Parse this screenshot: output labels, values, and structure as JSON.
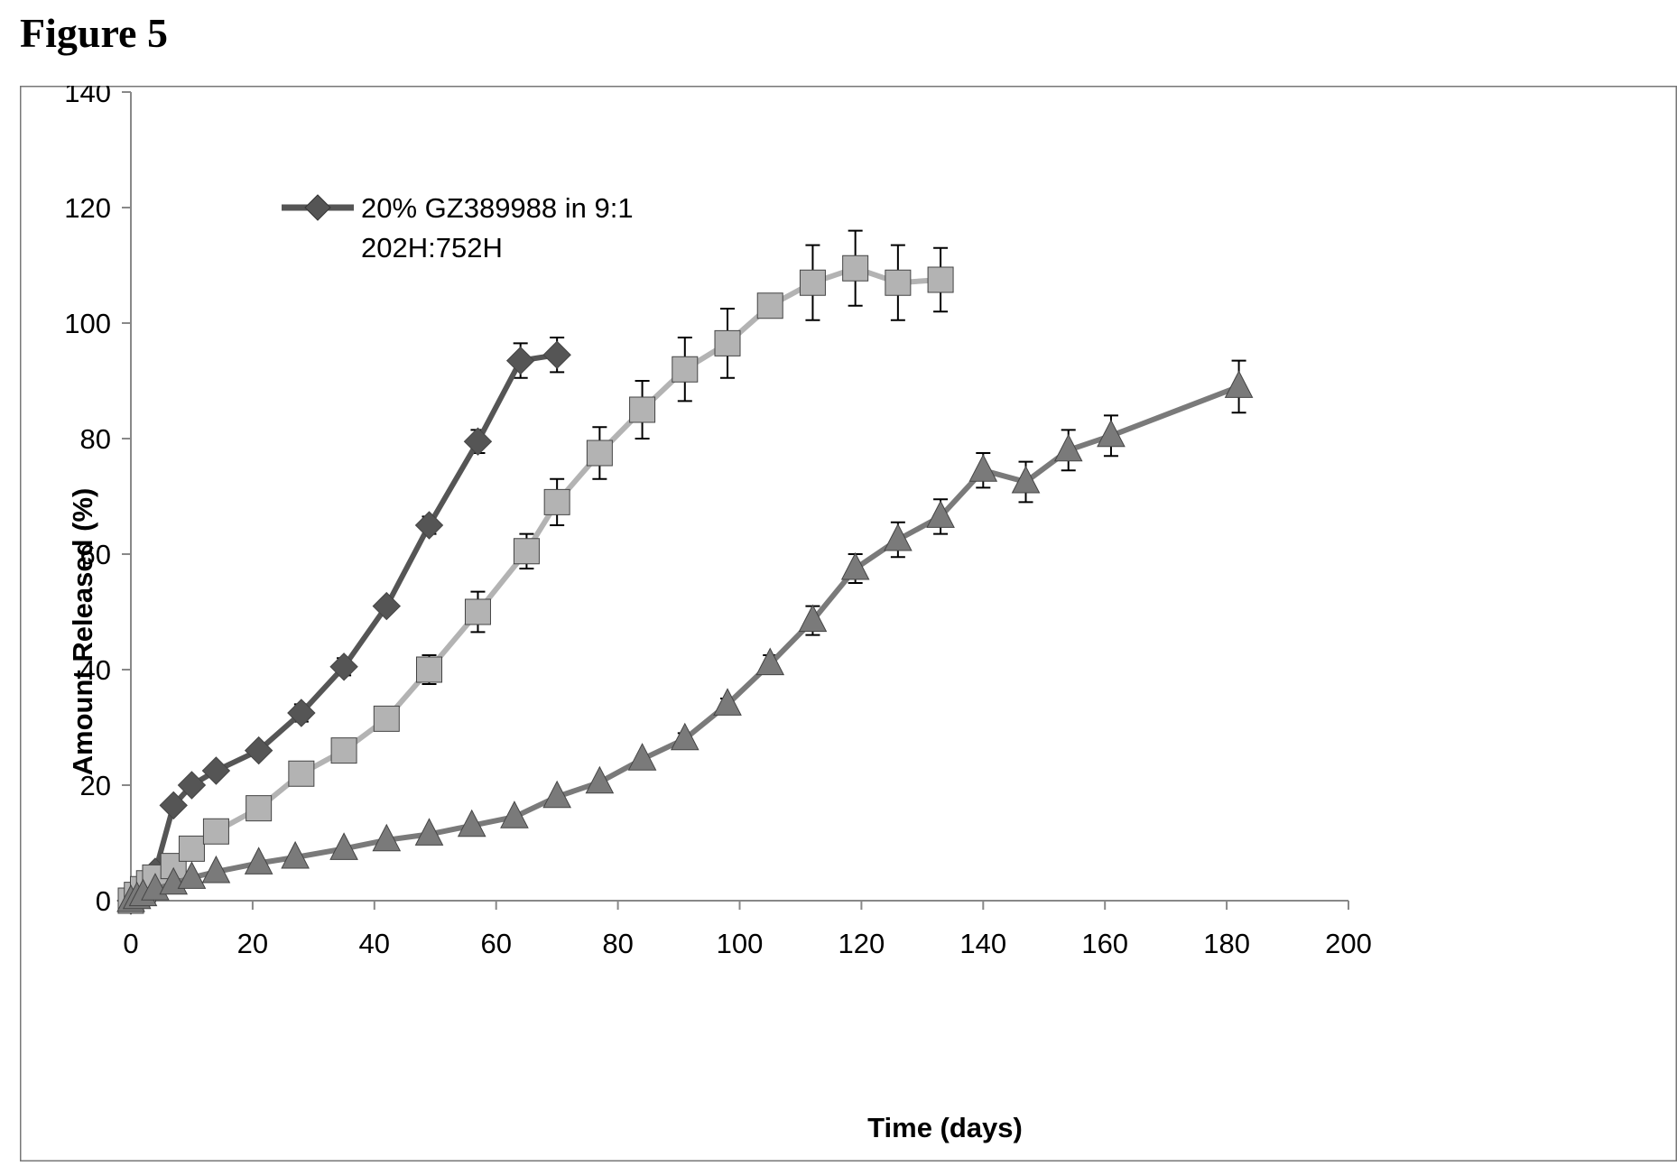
{
  "figure_title": "Figure 5",
  "chart_data": {
    "type": "line",
    "xlabel": "Time (days)",
    "ylabel": "Amount Released (%)",
    "xlim": [
      0,
      200
    ],
    "ylim": [
      0,
      140
    ],
    "xticks": [
      0,
      20,
      40,
      60,
      80,
      100,
      120,
      140,
      160,
      180,
      200
    ],
    "yticks": [
      0,
      20,
      40,
      60,
      80,
      100,
      120,
      140
    ],
    "grid": false,
    "legend_position": "upper-left",
    "legend_entries": [
      "20% GZ389988 in 9:1",
      "202H:752H"
    ],
    "series": [
      {
        "name": "20% GZ389988 in 9:1 202H:752H",
        "marker": "diamond",
        "color": "#555555",
        "x": [
          0,
          1,
          2,
          3,
          4,
          7,
          10,
          14,
          21,
          28,
          35,
          42,
          49,
          57,
          64,
          70
        ],
        "y": [
          0,
          1.5,
          2.5,
          3.5,
          5,
          16.5,
          20,
          22.5,
          26,
          32.5,
          40.5,
          51,
          65,
          79.5,
          93.5,
          94.5
        ],
        "err": [
          0,
          0,
          0,
          0,
          0,
          1,
          1,
          1,
          1,
          1.5,
          1.5,
          1,
          1.5,
          2,
          3,
          3
        ]
      },
      {
        "name": "",
        "marker": "square",
        "color": "#b3b3b3",
        "x": [
          0,
          1,
          2,
          3,
          4,
          7,
          10,
          14,
          21,
          28,
          35,
          42,
          49,
          57,
          65,
          70,
          77,
          84,
          91,
          98,
          105,
          112,
          119,
          126,
          133
        ],
        "y": [
          0,
          1,
          2,
          3,
          4,
          6,
          9,
          12,
          16,
          22,
          26,
          31.5,
          40,
          50,
          60.5,
          69,
          77.5,
          85,
          92,
          96.5,
          103,
          107,
          109.5,
          107,
          107.5
        ],
        "err": [
          0,
          0,
          0,
          0,
          0,
          0,
          0,
          0,
          0,
          0,
          0,
          2,
          2.5,
          3.5,
          3,
          4,
          4.5,
          5,
          5.5,
          6,
          1,
          6.5,
          6.5,
          6.5,
          5.5
        ]
      },
      {
        "name": "",
        "marker": "triangle",
        "color": "#7a7a7a",
        "x": [
          0,
          1,
          2,
          4,
          7,
          10,
          14,
          21,
          27,
          35,
          42,
          49,
          56,
          63,
          70,
          77,
          84,
          91,
          98,
          105,
          112,
          119,
          126,
          133,
          140,
          147,
          154,
          161,
          182
        ],
        "y": [
          0,
          0.5,
          1,
          2,
          3,
          4,
          5,
          6.5,
          7.5,
          9,
          10.5,
          11.5,
          13,
          14.5,
          18,
          20.5,
          24.5,
          28,
          34,
          41,
          48.5,
          57.5,
          62.5,
          66.5,
          74.5,
          72.5,
          78,
          80.5,
          89
        ],
        "err": [
          0,
          0,
          0,
          0,
          0,
          0,
          0,
          0,
          0,
          0,
          0,
          0,
          0,
          0,
          0,
          0,
          0,
          1,
          1,
          1.5,
          2.5,
          2.5,
          3,
          3,
          3,
          3.5,
          3.5,
          3.5,
          4.5
        ]
      }
    ]
  }
}
